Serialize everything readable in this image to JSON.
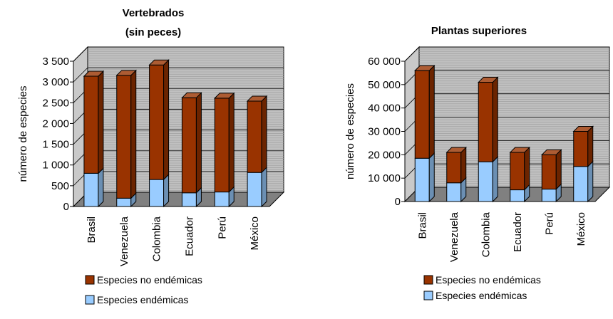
{
  "colors": {
    "endemic": "#99ccff",
    "non_endemic": "#993300",
    "wall": "#c0c0c0",
    "floor": "#808080",
    "grid": "#000000"
  },
  "chart_data": [
    {
      "type": "bar",
      "stacked": true,
      "title": "Vertebrados\n(sin peces)",
      "title_lines": [
        "Vertebrados",
        "(sin peces)"
      ],
      "ylabel": "número de especies",
      "xlabel": "",
      "categories": [
        "Brasil",
        "Venezuela",
        "Colombia",
        "Ecuador",
        "Perú",
        "México"
      ],
      "ylim": [
        0,
        3500
      ],
      "yticks": [
        0,
        500,
        1000,
        1500,
        2000,
        2500,
        3000,
        3500
      ],
      "ytick_labels": [
        "0",
        "500",
        "1 000",
        "1 500",
        "2 000",
        "2 500",
        "3 000",
        "3 500"
      ],
      "series": [
        {
          "name": "Especies endémicas",
          "values": [
            800,
            200,
            650,
            330,
            350,
            820
          ]
        },
        {
          "name": "Especies no endémicas",
          "values": [
            2340,
            2960,
            2760,
            2290,
            2260,
            1720
          ]
        }
      ],
      "legend": [
        "Especies no endémicas",
        "Especies endémicas"
      ],
      "legend_position": "bottom",
      "grid": true
    },
    {
      "type": "bar",
      "stacked": true,
      "title": "Plantas superiores",
      "title_lines": [
        "Plantas superiores"
      ],
      "ylabel": "número de especies",
      "xlabel": "",
      "categories": [
        "Brasil",
        "Venezuela",
        "Colombia",
        "Ecuador",
        "Perú",
        "México"
      ],
      "ylim": [
        0,
        60000
      ],
      "yticks": [
        0,
        10000,
        20000,
        30000,
        40000,
        50000,
        60000
      ],
      "ytick_labels": [
        "0",
        "10 000",
        "20 000",
        "30 000",
        "40 000",
        "50 000",
        "60 000"
      ],
      "series": [
        {
          "name": "Especies endémicas",
          "values": [
            18500,
            8000,
            17000,
            5000,
            5300,
            15000
          ]
        },
        {
          "name": "Especies no endémicas",
          "values": [
            37500,
            13000,
            34000,
            16000,
            14700,
            15000
          ]
        }
      ],
      "legend": [
        "Especies no endémicas",
        "Especies endémicas"
      ],
      "legend_position": "bottom",
      "grid": true
    }
  ]
}
